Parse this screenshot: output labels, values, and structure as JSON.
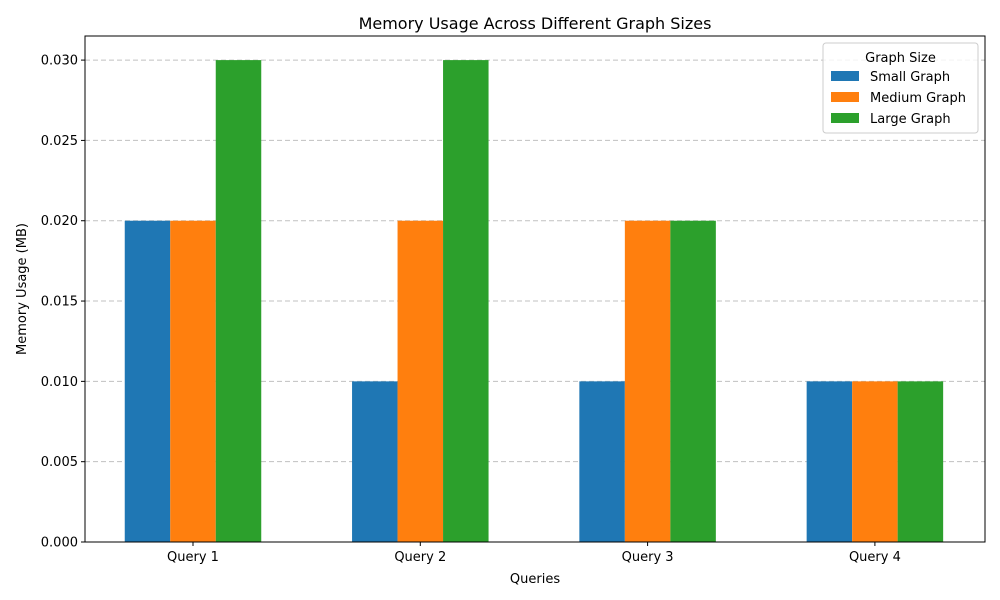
{
  "chart_data": {
    "type": "bar",
    "title": "Memory Usage Across Different Graph Sizes",
    "xlabel": "Queries",
    "ylabel": "Memory Usage (MB)",
    "categories": [
      "Query 1",
      "Query 2",
      "Query 3",
      "Query 4"
    ],
    "series": [
      {
        "name": "Small Graph",
        "color": "#1f77b4",
        "values": [
          0.02,
          0.01,
          0.01,
          0.01
        ]
      },
      {
        "name": "Medium Graph",
        "color": "#ff7f0e",
        "values": [
          0.02,
          0.02,
          0.02,
          0.01
        ]
      },
      {
        "name": "Large Graph",
        "color": "#2ca02c",
        "values": [
          0.03,
          0.03,
          0.02,
          0.01
        ]
      }
    ],
    "ylim": [
      0,
      0.0315
    ],
    "yticks": [
      "0.000",
      "0.005",
      "0.010",
      "0.015",
      "0.020",
      "0.025",
      "0.030"
    ],
    "grid": "y-dashed",
    "legend": {
      "title": "Graph Size",
      "placement": "top-right"
    }
  }
}
